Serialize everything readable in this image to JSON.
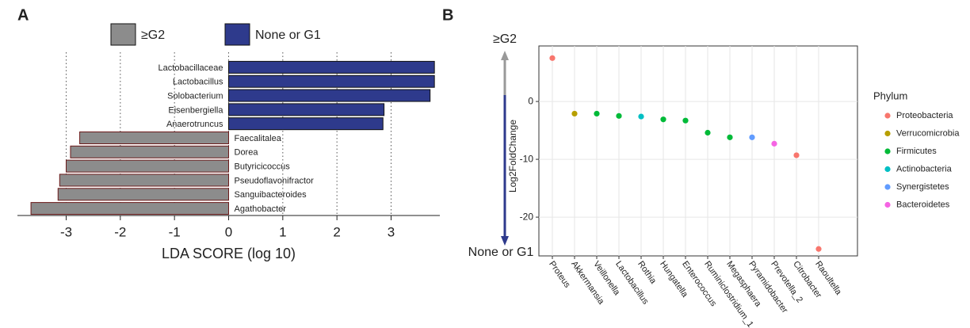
{
  "chart_data": [
    {
      "type": "bar",
      "orientation": "horizontal",
      "panel": "A",
      "xlabel": "LDA SCORE (log 10)",
      "categories": [
        "Lactobacillaceae",
        "Lactobacillus",
        "Solobacterium",
        "Eisenbergiella",
        "Anaerotruncus",
        "Faecalitalea",
        "Dorea",
        "Butyricicoccus",
        "Pseudoflavonifractor",
        "Sanguibacteroides",
        "Agathobacter"
      ],
      "series": [
        {
          "name": "≥G2",
          "color": "#8c8c8c",
          "values": [
            null,
            null,
            null,
            null,
            null,
            -2.75,
            -2.92,
            -3.0,
            -3.12,
            -3.15,
            -3.65
          ]
        },
        {
          "name": "None or G1",
          "color": "#2e3a8c",
          "values": [
            3.8,
            3.8,
            3.72,
            2.87,
            2.85,
            null,
            null,
            null,
            null,
            null,
            null
          ]
        }
      ],
      "xlim": [
        -3.9,
        3.9
      ],
      "xticks": [
        -3,
        -2,
        -1,
        0,
        1,
        2,
        3
      ],
      "grid": true
    },
    {
      "type": "scatter",
      "panel": "B",
      "ylabel": "Log2FoldChange",
      "top_label": "≥G2",
      "bottom_label": "None or G1",
      "legend_title": "Phylum",
      "categories": [
        "Proteus",
        "Akkermansia",
        "Veillonella",
        "Lactobacillus",
        "Rothia",
        "Hungatella",
        "Enterococcus",
        "Ruminiclostridium_1",
        "Megasphaera",
        "Pyramidobacter",
        "Prevotella_2",
        "Citrobacter",
        "Raoultella"
      ],
      "series": [
        {
          "name": "Proteobacteria",
          "color": "#F8766D",
          "values": [
            7.5,
            null,
            null,
            null,
            null,
            null,
            null,
            null,
            null,
            null,
            null,
            -9.3,
            -25.5
          ]
        },
        {
          "name": "Verrucomicrobia",
          "color": "#B79F00",
          "values": [
            null,
            -2.1,
            null,
            null,
            null,
            null,
            null,
            null,
            null,
            null,
            null,
            null,
            null
          ]
        },
        {
          "name": "Firmicutes",
          "color": "#00BA38",
          "values": [
            null,
            null,
            -2.1,
            -2.5,
            null,
            -3.1,
            -3.3,
            -5.4,
            -6.2,
            null,
            null,
            null,
            null
          ]
        },
        {
          "name": "Actinobacteria",
          "color": "#00BFC4",
          "values": [
            null,
            null,
            null,
            null,
            -2.6,
            null,
            null,
            null,
            null,
            null,
            null,
            null,
            null
          ]
        },
        {
          "name": "Synergistetes",
          "color": "#619CFF",
          "values": [
            null,
            null,
            null,
            null,
            null,
            null,
            null,
            null,
            null,
            -6.2,
            null,
            null,
            null
          ]
        },
        {
          "name": "Bacteroidetes",
          "color": "#F564E3",
          "values": [
            null,
            null,
            null,
            null,
            null,
            null,
            null,
            null,
            null,
            null,
            -7.3,
            null,
            null
          ]
        }
      ],
      "ylim": [
        -26.7,
        9.6
      ],
      "yticks": [
        0,
        -10,
        -20
      ],
      "grid": true
    }
  ]
}
